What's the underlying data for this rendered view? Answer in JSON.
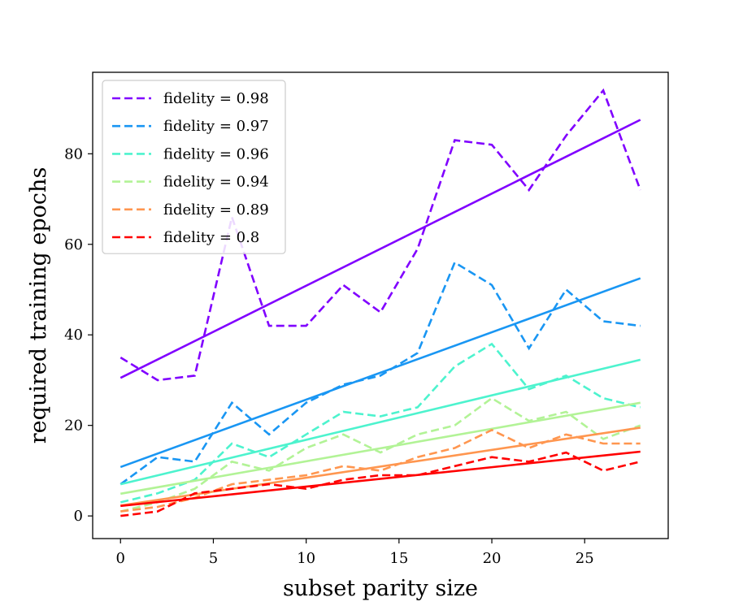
{
  "chart_data": {
    "type": "line",
    "title": "",
    "xlabel": "subset parity size",
    "ylabel": "required training epochs",
    "xlim": [
      -1.5,
      29.5
    ],
    "ylim": [
      -5,
      98
    ],
    "xticks": [
      0,
      5,
      10,
      15,
      20,
      25
    ],
    "xtick_labels": [
      "0",
      "5",
      "10",
      "15",
      "20",
      "25"
    ],
    "yticks": [
      0,
      20,
      40,
      60,
      80
    ],
    "ytick_labels": [
      "0",
      "20",
      "40",
      "60",
      "80"
    ],
    "legend_position": "upper-left",
    "x": [
      0,
      2,
      4,
      6,
      8,
      10,
      12,
      14,
      16,
      18,
      20,
      22,
      24,
      26,
      28
    ],
    "series": [
      {
        "name": "fidelity = 0.98",
        "color": "#8000ff",
        "values": [
          35,
          30,
          31,
          66,
          42,
          42,
          51,
          45,
          59,
          83,
          82,
          72,
          84,
          94,
          72
        ],
        "fit": [
          30.5,
          87.5
        ]
      },
      {
        "name": "fidelity = 0.97",
        "color": "#1996f3",
        "values": [
          7,
          13,
          12,
          25,
          18,
          25,
          29,
          31,
          36,
          56,
          51,
          37,
          50,
          43,
          42
        ],
        "fit": [
          10.8,
          52.5
        ]
      },
      {
        "name": "fidelity = 0.96",
        "color": "#4df3ce",
        "values": [
          3,
          5,
          8,
          16,
          13,
          18,
          23,
          22,
          24,
          33,
          38,
          28,
          31,
          26,
          24
        ],
        "fit": [
          7.0,
          34.5
        ]
      },
      {
        "name": "fidelity = 0.94",
        "color": "#b2f396",
        "values": [
          1,
          3,
          6,
          12,
          10,
          15,
          18,
          14,
          18,
          20,
          26,
          21,
          23,
          17,
          20
        ],
        "fit": [
          4.9,
          25.0
        ]
      },
      {
        "name": "fidelity = 0.89",
        "color": "#ff964f",
        "values": [
          1,
          2,
          4,
          7,
          8,
          9,
          11,
          10,
          13,
          15,
          19,
          15,
          18,
          16,
          16
        ],
        "fit": [
          2.3,
          19.5
        ]
      },
      {
        "name": "fidelity = 0.8",
        "color": "#ff0000",
        "values": [
          0,
          1,
          5,
          6,
          7,
          6,
          8,
          9,
          9,
          11,
          13,
          12,
          14,
          10,
          12
        ],
        "fit": [
          2.2,
          14.2
        ]
      }
    ]
  }
}
